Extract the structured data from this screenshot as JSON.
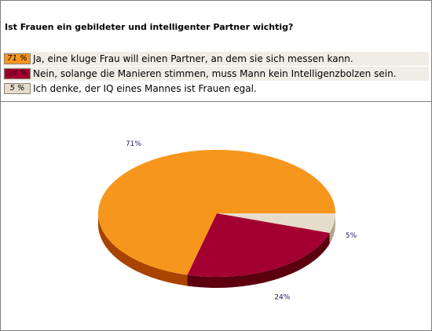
{
  "question": "Ist Frauen ein gebildeter und intelligenter Partner wichtig?",
  "answers": [
    {
      "percent_label": "71 %",
      "text": "Ja, eine kluge Frau will einen Partner, an dem sie sich messen kann."
    },
    {
      "percent_label": "24 %",
      "text": "Nein, solange die Manieren stimmen, muss Mann kein Intelligenzbolzen sein."
    },
    {
      "percent_label": "5 %",
      "text": "Ich denke, der IQ eines Mannes ist Frauen egal."
    }
  ],
  "chart_data": {
    "type": "pie",
    "title": "",
    "categories": [
      "Ja, eine kluge Frau will einen Partner, an dem sie sich messen kann.",
      "Nein, solange die Manieren stimmen, muss Mann kein Intelligenzbolzen sein.",
      "Ich denke, der IQ eines Mannes ist Frauen egal."
    ],
    "values": [
      71,
      24,
      5
    ],
    "data_labels": [
      "71%",
      "24%",
      "5%"
    ],
    "colors": [
      "#f7961c",
      "#a30031",
      "#e6dccb"
    ],
    "side_colors": [
      "#a84400",
      "#5c0010",
      "#b2a58c"
    ],
    "legend": "top",
    "style": "3d-pie"
  }
}
